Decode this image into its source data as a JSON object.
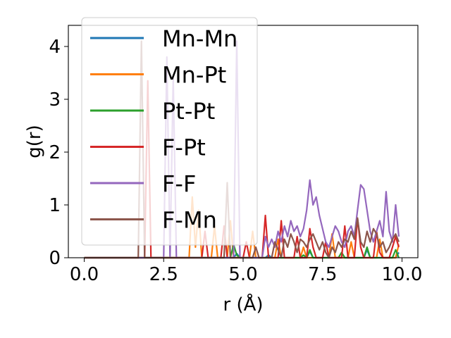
{
  "chart_data": {
    "type": "line",
    "title": "",
    "xlabel": "r (Å)",
    "ylabel": "g(r)",
    "xlim": [
      -0.5,
      10.5
    ],
    "ylim": [
      0,
      4.4
    ],
    "xticks": [
      0.0,
      2.5,
      5.0,
      7.5,
      10.0
    ],
    "xtick_labels": [
      "0.0",
      "2.5",
      "5.0",
      "7.5",
      "10.0"
    ],
    "yticks": [
      0,
      1,
      2,
      3,
      4
    ],
    "ytick_labels": [
      "0",
      "1",
      "2",
      "3",
      "4"
    ],
    "grid": false,
    "legend": "upper-left",
    "series": [
      {
        "name": "Mn-Mn",
        "color": "#1f77b4",
        "points": [
          [
            0,
            0
          ],
          [
            4.7,
            0
          ],
          [
            4.8,
            0.08
          ],
          [
            4.9,
            0
          ],
          [
            5.7,
            0
          ],
          [
            5.8,
            0.05
          ],
          [
            5.9,
            0
          ],
          [
            7.0,
            0
          ],
          [
            7.1,
            0.12
          ],
          [
            7.2,
            0
          ],
          [
            8.8,
            0
          ],
          [
            8.9,
            0.15
          ],
          [
            9.0,
            0
          ],
          [
            9.8,
            0
          ],
          [
            9.9,
            0.1
          ]
        ]
      },
      {
        "name": "Mn-Pt",
        "color": "#ff7f0e",
        "points": [
          [
            0,
            0
          ],
          [
            3.3,
            0
          ],
          [
            3.4,
            1.15
          ],
          [
            3.5,
            0.2
          ],
          [
            3.6,
            0.9
          ],
          [
            3.7,
            0
          ],
          [
            4.0,
            0
          ],
          [
            4.1,
            0.6
          ],
          [
            4.2,
            0
          ],
          [
            4.5,
            0
          ],
          [
            4.6,
            0.7
          ],
          [
            4.7,
            0
          ],
          [
            5.2,
            0
          ],
          [
            5.3,
            0.5
          ],
          [
            5.4,
            0
          ],
          [
            6.0,
            0
          ],
          [
            6.1,
            0.35
          ],
          [
            6.2,
            0
          ],
          [
            6.8,
            0
          ],
          [
            6.9,
            0.2
          ],
          [
            7.0,
            0
          ],
          [
            7.7,
            0
          ],
          [
            7.8,
            0.45
          ],
          [
            7.9,
            0
          ],
          [
            8.3,
            0
          ],
          [
            8.4,
            0.3
          ],
          [
            8.5,
            0
          ],
          [
            9.2,
            0
          ],
          [
            9.3,
            0.35
          ],
          [
            9.4,
            0
          ],
          [
            9.8,
            0
          ],
          [
            9.9,
            0.25
          ]
        ]
      },
      {
        "name": "Pt-Pt",
        "color": "#2ca02c",
        "points": [
          [
            0,
            0
          ],
          [
            4.6,
            0
          ],
          [
            4.7,
            0.25
          ],
          [
            4.8,
            0.05
          ],
          [
            4.9,
            0
          ],
          [
            6.8,
            0
          ],
          [
            6.9,
            0.05
          ],
          [
            7.0,
            0
          ],
          [
            7.1,
            0.15
          ],
          [
            7.2,
            0
          ],
          [
            8.0,
            0
          ],
          [
            8.1,
            0.1
          ],
          [
            8.2,
            0
          ],
          [
            8.8,
            0
          ],
          [
            8.9,
            0.2
          ],
          [
            9.0,
            0
          ],
          [
            9.7,
            0
          ],
          [
            9.8,
            0.15
          ],
          [
            9.9,
            0
          ]
        ]
      },
      {
        "name": "F-Pt",
        "color": "#d62728",
        "points": [
          [
            0,
            0
          ],
          [
            1.9,
            0
          ],
          [
            2.0,
            3.35
          ],
          [
            2.1,
            0
          ],
          [
            3.7,
            0
          ],
          [
            3.8,
            0.5
          ],
          [
            3.9,
            0
          ],
          [
            4.3,
            0
          ],
          [
            4.4,
            0.6
          ],
          [
            4.5,
            0
          ],
          [
            5.0,
            0
          ],
          [
            5.1,
            0.3
          ],
          [
            5.2,
            0
          ],
          [
            5.6,
            0
          ],
          [
            5.7,
            0.8
          ],
          [
            5.8,
            0
          ],
          [
            6.1,
            0
          ],
          [
            6.2,
            0.7
          ],
          [
            6.3,
            0
          ],
          [
            6.6,
            0
          ],
          [
            6.7,
            0.4
          ],
          [
            6.8,
            0
          ],
          [
            7.0,
            0
          ],
          [
            7.1,
            0.55
          ],
          [
            7.2,
            0.2
          ],
          [
            7.3,
            0
          ],
          [
            7.5,
            0
          ],
          [
            7.6,
            0.3
          ],
          [
            7.7,
            0
          ],
          [
            8.1,
            0
          ],
          [
            8.2,
            0.6
          ],
          [
            8.3,
            0
          ],
          [
            8.5,
            0
          ],
          [
            8.6,
            0.75
          ],
          [
            8.7,
            0.2
          ],
          [
            8.8,
            0
          ],
          [
            9.1,
            0
          ],
          [
            9.2,
            0.5
          ],
          [
            9.3,
            0.1
          ],
          [
            9.4,
            0
          ],
          [
            9.6,
            0
          ],
          [
            9.7,
            0.2
          ],
          [
            9.8,
            0.4
          ],
          [
            9.9,
            0.2
          ]
        ]
      },
      {
        "name": "F-F",
        "color": "#9467bd",
        "points": [
          [
            0,
            0
          ],
          [
            2.5,
            0
          ],
          [
            2.6,
            3.8
          ],
          [
            2.7,
            0
          ],
          [
            2.8,
            3.4
          ],
          [
            2.9,
            0
          ],
          [
            4.7,
            0
          ],
          [
            4.8,
            4.1
          ],
          [
            4.9,
            0
          ],
          [
            5.6,
            0
          ],
          [
            5.7,
            0.4
          ],
          [
            5.8,
            0.2
          ],
          [
            5.9,
            0.35
          ],
          [
            6.0,
            0.2
          ],
          [
            6.1,
            0.5
          ],
          [
            6.2,
            0.3
          ],
          [
            6.3,
            0.6
          ],
          [
            6.4,
            0.4
          ],
          [
            6.5,
            0.7
          ],
          [
            6.6,
            0.5
          ],
          [
            6.7,
            0.6
          ],
          [
            6.8,
            0.4
          ],
          [
            6.9,
            0.55
          ],
          [
            7.0,
            0.9
          ],
          [
            7.1,
            1.47
          ],
          [
            7.2,
            1.0
          ],
          [
            7.3,
            1.15
          ],
          [
            7.4,
            0.8
          ],
          [
            7.5,
            0.55
          ],
          [
            7.6,
            0.3
          ],
          [
            7.7,
            0.2
          ],
          [
            7.8,
            0.4
          ],
          [
            7.9,
            0.6
          ],
          [
            8.0,
            0.5
          ],
          [
            8.1,
            0.3
          ],
          [
            8.2,
            0.2
          ],
          [
            8.3,
            0.5
          ],
          [
            8.4,
            0.6
          ],
          [
            8.5,
            0.4
          ],
          [
            8.6,
            0.9
          ],
          [
            8.7,
            1.38
          ],
          [
            8.8,
            1.3
          ],
          [
            8.9,
            0.9
          ],
          [
            9.0,
            0.5
          ],
          [
            9.1,
            0.3
          ],
          [
            9.2,
            0.5
          ],
          [
            9.3,
            0.7
          ],
          [
            9.4,
            0.4
          ],
          [
            9.5,
            1.25
          ],
          [
            9.6,
            0.5
          ],
          [
            9.7,
            0.3
          ],
          [
            9.8,
            1.0
          ],
          [
            9.9,
            0.4
          ]
        ]
      },
      {
        "name": "F-Mn",
        "color": "#8c564b",
        "points": [
          [
            0,
            0
          ],
          [
            1.7,
            0
          ],
          [
            1.8,
            4.1
          ],
          [
            1.9,
            0
          ],
          [
            4.4,
            0
          ],
          [
            4.5,
            1.42
          ],
          [
            4.6,
            0
          ],
          [
            5.3,
            0
          ],
          [
            5.4,
            0.2
          ],
          [
            5.5,
            0
          ],
          [
            5.9,
            0
          ],
          [
            6.0,
            0.3
          ],
          [
            6.1,
            0.15
          ],
          [
            6.2,
            0
          ],
          [
            6.3,
            0.35
          ],
          [
            6.4,
            0.2
          ],
          [
            6.5,
            0.45
          ],
          [
            6.6,
            0.3
          ],
          [
            6.7,
            0.1
          ],
          [
            6.8,
            0.35
          ],
          [
            6.9,
            0.3
          ],
          [
            7.0,
            0.2
          ],
          [
            7.1,
            0.35
          ],
          [
            7.2,
            0.45
          ],
          [
            7.3,
            0.3
          ],
          [
            7.4,
            0.15
          ],
          [
            7.5,
            0.3
          ],
          [
            7.6,
            0.1
          ],
          [
            7.7,
            0
          ],
          [
            7.8,
            0.2
          ],
          [
            7.9,
            0.1
          ],
          [
            8.0,
            0.3
          ],
          [
            8.1,
            0.2
          ],
          [
            8.2,
            0.35
          ],
          [
            8.3,
            0.3
          ],
          [
            8.4,
            0.5
          ],
          [
            8.5,
            0.35
          ],
          [
            8.6,
            0.75
          ],
          [
            8.7,
            0.3
          ],
          [
            8.8,
            0.2
          ],
          [
            8.9,
            0.5
          ],
          [
            9.0,
            0.3
          ],
          [
            9.1,
            0.55
          ],
          [
            9.2,
            0.45
          ],
          [
            9.3,
            0.2
          ],
          [
            9.4,
            0.3
          ],
          [
            9.5,
            0.1
          ],
          [
            9.6,
            0.2
          ],
          [
            9.7,
            0.35
          ],
          [
            9.8,
            0.45
          ],
          [
            9.9,
            0.3
          ]
        ]
      }
    ]
  }
}
